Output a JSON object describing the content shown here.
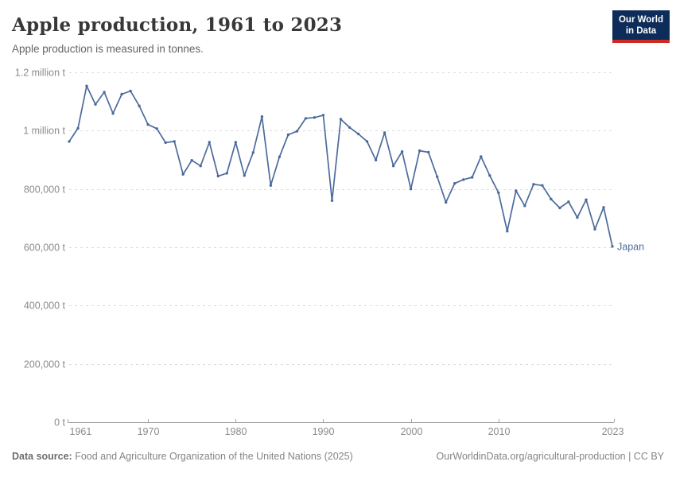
{
  "header": {
    "title": "Apple production, 1961 to 2023",
    "subtitle": "Apple production is measured in tonnes.",
    "logo": {
      "line1": "Our World",
      "line2": "in Data"
    }
  },
  "chart_data": {
    "type": "line",
    "title": "Apple production, 1961 to 2023",
    "ylabel": "",
    "xlabel": "",
    "unit": "tonnes",
    "grid": true,
    "legend_position": "end-of-line",
    "xlim": [
      1961,
      2023
    ],
    "ylim": [
      0,
      1200000
    ],
    "x": [
      1961,
      1962,
      1963,
      1964,
      1965,
      1966,
      1967,
      1968,
      1969,
      1970,
      1971,
      1972,
      1973,
      1974,
      1975,
      1976,
      1977,
      1978,
      1979,
      1980,
      1981,
      1982,
      1983,
      1984,
      1985,
      1986,
      1987,
      1988,
      1989,
      1990,
      1991,
      1992,
      1993,
      1994,
      1995,
      1996,
      1997,
      1998,
      1999,
      2000,
      2001,
      2002,
      2003,
      2004,
      2005,
      2006,
      2007,
      2008,
      2009,
      2010,
      2011,
      2012,
      2013,
      2014,
      2015,
      2016,
      2017,
      2018,
      2019,
      2020,
      2021,
      2022,
      2023
    ],
    "series": [
      {
        "name": "Japan",
        "values": [
          963000,
          1008000,
          1153000,
          1090000,
          1132000,
          1059000,
          1125000,
          1136000,
          1085000,
          1021000,
          1007000,
          959000,
          963000,
          850000,
          898000,
          879000,
          960000,
          844000,
          854000,
          960000,
          846000,
          925000,
          1048000,
          812000,
          910000,
          986000,
          998000,
          1042000,
          1045000,
          1053000,
          760000,
          1039000,
          1011000,
          989000,
          963000,
          899000,
          993000,
          879000,
          928000,
          800000,
          931000,
          926000,
          842000,
          754000,
          819000,
          832000,
          840000,
          911000,
          846000,
          787000,
          655000,
          794000,
          742000,
          816000,
          812000,
          765000,
          735000,
          756000,
          702000,
          763000,
          662000,
          737000,
          603000
        ]
      }
    ],
    "y_ticks": [
      {
        "value": 0,
        "label": "0 t"
      },
      {
        "value": 200000,
        "label": "200,000 t"
      },
      {
        "value": 400000,
        "label": "400,000 t"
      },
      {
        "value": 600000,
        "label": "600,000 t"
      },
      {
        "value": 800000,
        "label": "800,000 t"
      },
      {
        "value": 1000000,
        "label": "1 million t"
      },
      {
        "value": 1200000,
        "label": "1.2 million t"
      }
    ],
    "x_ticks": [
      {
        "year": 1961,
        "label": "1961",
        "anchor": "start"
      },
      {
        "year": 1970,
        "label": "1970",
        "anchor": "middle"
      },
      {
        "year": 1980,
        "label": "1980",
        "anchor": "middle"
      },
      {
        "year": 1990,
        "label": "1990",
        "anchor": "middle"
      },
      {
        "year": 2000,
        "label": "2000",
        "anchor": "middle"
      },
      {
        "year": 2010,
        "label": "2010",
        "anchor": "middle"
      },
      {
        "year": 2023,
        "label": "2023",
        "anchor": "middle"
      }
    ]
  },
  "colors": {
    "line": "#4C6A9C",
    "series_label": "#4C6A9C",
    "grid": "#dcdcdc",
    "axis": "#a5a5a5",
    "tick_text": "#8b8b8b",
    "logo_bg": "#0d2c59",
    "logo_accent": "#cc2a22"
  },
  "footer": {
    "source_label": "Data source:",
    "source_text": "Food and Agriculture Organization of the United Nations (2025)",
    "credit": "OurWorldinData.org/agricultural-production | CC BY"
  }
}
